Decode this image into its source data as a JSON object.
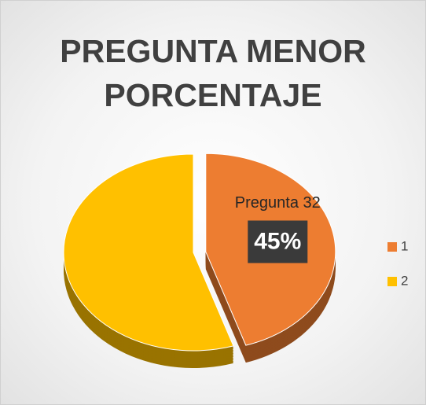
{
  "chart_data": {
    "type": "pie",
    "title": "PREGUNTA MENOR PORCENTAJE",
    "categories": [
      "1",
      "2"
    ],
    "values": [
      45,
      55
    ],
    "value_labels": [
      "45%",
      null
    ],
    "colors": [
      "#ed7d31",
      "#ffc000"
    ],
    "annotation": "Pregunta 32",
    "legend": "right"
  }
}
